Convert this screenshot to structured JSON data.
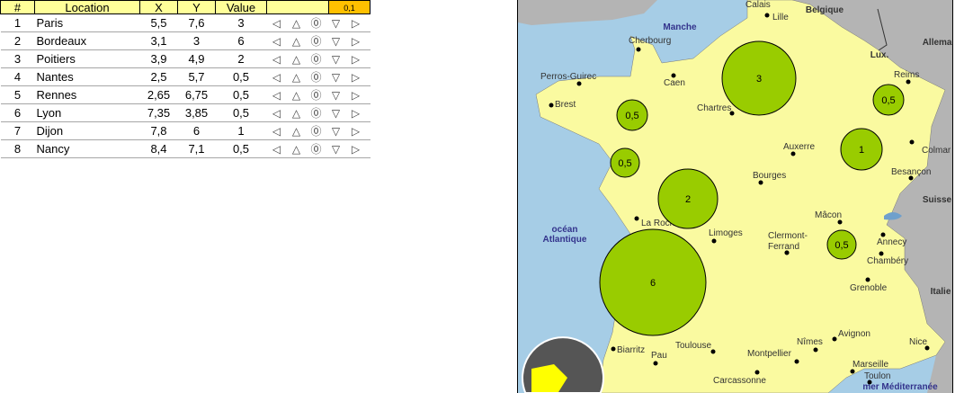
{
  "table": {
    "headers": [
      "#",
      "Location",
      "X",
      "Y",
      "Value",
      "",
      "0,1"
    ],
    "arrow_icons": [
      "◁",
      "△",
      "⓪",
      "▽",
      "▷"
    ],
    "rows": [
      {
        "n": "1",
        "loc": "Paris",
        "x": "5,5",
        "y": "7,6",
        "v": "3"
      },
      {
        "n": "2",
        "loc": "Bordeaux",
        "x": "3,1",
        "y": "3",
        "v": "6"
      },
      {
        "n": "3",
        "loc": "Poitiers",
        "x": "3,9",
        "y": "4,9",
        "v": "2"
      },
      {
        "n": "4",
        "loc": "Nantes",
        "x": "2,5",
        "y": "5,7",
        "v": "0,5"
      },
      {
        "n": "5",
        "loc": "Rennes",
        "x": "2,65",
        "y": "6,75",
        "v": "0,5"
      },
      {
        "n": "6",
        "loc": "Lyon",
        "x": "7,35",
        "y": "3,85",
        "v": "0,5"
      },
      {
        "n": "7",
        "loc": "Dijon",
        "x": "7,8",
        "y": "6",
        "v": "1"
      },
      {
        "n": "8",
        "loc": "Nancy",
        "x": "8,4",
        "y": "7,1",
        "v": "0,5"
      }
    ]
  },
  "map": {
    "colors": {
      "sea": "#a6cde6",
      "land": "#fafaa0",
      "neighbor": "#b4b4b4",
      "bubble": "#99cc00"
    },
    "countries": [
      "Belgique",
      "Allemagne",
      "Lux.",
      "Suisse",
      "Italie"
    ],
    "seas": [
      "Manche",
      "océan",
      "Atlantique",
      "mer Méditerranée"
    ],
    "cities": [
      "Calais",
      "Lille",
      "Cherbourg",
      "Perros-Guirec",
      "Caen",
      "Reims",
      "Brest",
      "Chartres",
      "Auxerre",
      "Colmar",
      "Bourges",
      "Besançon",
      "Mâcon",
      "La Rochelle",
      "Limoges",
      "Clermont-",
      "Ferrand",
      "Annecy",
      "Chambéry",
      "Grenoble",
      "Biarritz",
      "Pau",
      "Toulouse",
      "Nîmes",
      "Avignon",
      "Montpellier",
      "Nice",
      "Marseille",
      "Toulon",
      "Carcassonne"
    ],
    "bubble_labels": [
      "3",
      "6",
      "2",
      "0,5",
      "0,5",
      "0,5",
      "1",
      "0,5"
    ]
  }
}
